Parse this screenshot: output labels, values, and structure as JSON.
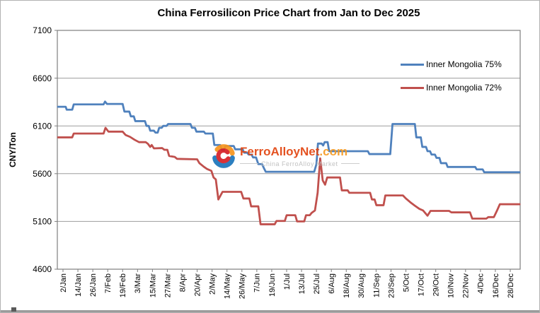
{
  "page": {
    "title": "China Ferrosilicon Price Chart from Jan to Dec 2025"
  },
  "watermark": {
    "brand": "FerroAlloyNet",
    "brand_suffix": ".com",
    "tagline": "China FerroAlloy Market",
    "brand_color": "#e2440f",
    "suffix_color": "#f59a22",
    "tagline_color": "#bcbcbc"
  },
  "chart_data": {
    "type": "line",
    "title": "China Ferrosilicon Price Chart from Jan to Dec 2025",
    "xlabel": "",
    "ylabel": "CNY/Ton",
    "ylim": [
      4600,
      7100
    ],
    "y_ticks": [
      4600,
      5100,
      5600,
      6100,
      6600,
      7100
    ],
    "grid": "horizontal",
    "legend_position": "top-right",
    "x_tick_labels": [
      "2/Jan",
      "14/Jan",
      "26/Jan",
      "7/Feb",
      "19/Feb",
      "3/Mar",
      "15/Mar",
      "27/Mar",
      "8/Apr",
      "20/Apr",
      "2/May",
      "14/May",
      "26/May",
      "7/Jun",
      "19/Jun",
      "1/Jul",
      "13/Jul",
      "25/Jul",
      "6/Aug",
      "18/Aug",
      "30/Aug",
      "11/Sep",
      "23/Sep",
      "5/Oct",
      "17/Oct",
      "29/Oct",
      "10/Nov",
      "22/Nov",
      "4/Dec",
      "16/Dec",
      "28/Dec"
    ],
    "axis_color": "#7f7f7f",
    "gridline_color": "#9d9d9d",
    "series": [
      {
        "name": "Inner Mongolia 75%",
        "color": "#4F81BD",
        "points": [
          [
            0,
            6300
          ],
          [
            0.18,
            6300
          ],
          [
            0.25,
            6270
          ],
          [
            0.62,
            6270
          ],
          [
            0.72,
            6325
          ],
          [
            2.72,
            6325
          ],
          [
            2.82,
            6355
          ],
          [
            2.95,
            6330
          ],
          [
            4.0,
            6330
          ],
          [
            4.12,
            6250
          ],
          [
            4.45,
            6250
          ],
          [
            4.55,
            6200
          ],
          [
            4.75,
            6200
          ],
          [
            4.85,
            6150
          ],
          [
            5.5,
            6150
          ],
          [
            5.6,
            6100
          ],
          [
            5.75,
            6100
          ],
          [
            5.85,
            6050
          ],
          [
            6.1,
            6050
          ],
          [
            6.2,
            6030
          ],
          [
            6.35,
            6030
          ],
          [
            6.45,
            6080
          ],
          [
            6.62,
            6080
          ],
          [
            6.72,
            6100
          ],
          [
            6.95,
            6100
          ],
          [
            7.05,
            6120
          ],
          [
            8.55,
            6120
          ],
          [
            8.65,
            6080
          ],
          [
            8.85,
            6080
          ],
          [
            8.95,
            6040
          ],
          [
            9.45,
            6040
          ],
          [
            9.55,
            6020
          ],
          [
            10.05,
            6020
          ],
          [
            10.15,
            5900
          ],
          [
            10.55,
            5900
          ],
          [
            10.65,
            5850
          ],
          [
            10.8,
            5850
          ],
          [
            10.9,
            5890
          ],
          [
            11.45,
            5890
          ],
          [
            11.55,
            5855
          ],
          [
            12.05,
            5855
          ],
          [
            12.15,
            5820
          ],
          [
            12.35,
            5820
          ],
          [
            12.45,
            5800
          ],
          [
            12.65,
            5800
          ],
          [
            12.75,
            5770
          ],
          [
            12.95,
            5770
          ],
          [
            13.1,
            5700
          ],
          [
            13.35,
            5700
          ],
          [
            13.5,
            5650
          ],
          [
            13.6,
            5620
          ],
          [
            16.85,
            5620
          ],
          [
            17.0,
            5700
          ],
          [
            17.1,
            5915
          ],
          [
            17.35,
            5915
          ],
          [
            17.45,
            5895
          ],
          [
            17.55,
            5930
          ],
          [
            17.75,
            5930
          ],
          [
            17.85,
            5835
          ],
          [
            20.45,
            5835
          ],
          [
            20.55,
            5805
          ],
          [
            21.95,
            5805
          ],
          [
            22.1,
            6120
          ],
          [
            23.6,
            6120
          ],
          [
            23.7,
            5980
          ],
          [
            24.0,
            5980
          ],
          [
            24.1,
            5880
          ],
          [
            24.35,
            5880
          ],
          [
            24.45,
            5835
          ],
          [
            24.62,
            5835
          ],
          [
            24.72,
            5800
          ],
          [
            24.95,
            5800
          ],
          [
            25.05,
            5765
          ],
          [
            25.25,
            5765
          ],
          [
            25.35,
            5710
          ],
          [
            25.7,
            5710
          ],
          [
            25.8,
            5670
          ],
          [
            27.65,
            5670
          ],
          [
            27.75,
            5645
          ],
          [
            28.15,
            5645
          ],
          [
            28.25,
            5615
          ],
          [
            30,
            5615
          ]
        ]
      },
      {
        "name": "Inner Mongolia 72%",
        "color": "#C0504D",
        "points": [
          [
            0,
            5980
          ],
          [
            0.62,
            5980
          ],
          [
            0.72,
            6020
          ],
          [
            2.72,
            6020
          ],
          [
            2.85,
            6080
          ],
          [
            3.05,
            6040
          ],
          [
            4.0,
            6040
          ],
          [
            4.2,
            6005
          ],
          [
            4.5,
            5985
          ],
          [
            4.8,
            5955
          ],
          [
            5.1,
            5930
          ],
          [
            5.55,
            5930
          ],
          [
            5.7,
            5912
          ],
          [
            5.85,
            5880
          ],
          [
            5.95,
            5900
          ],
          [
            6.1,
            5865
          ],
          [
            6.65,
            5868
          ],
          [
            6.8,
            5850
          ],
          [
            7.0,
            5850
          ],
          [
            7.12,
            5785
          ],
          [
            7.5,
            5775
          ],
          [
            7.65,
            5755
          ],
          [
            9.0,
            5750
          ],
          [
            9.15,
            5710
          ],
          [
            9.45,
            5672
          ],
          [
            9.65,
            5650
          ],
          [
            9.95,
            5630
          ],
          [
            10.1,
            5560
          ],
          [
            10.25,
            5540
          ],
          [
            10.42,
            5330
          ],
          [
            10.7,
            5410
          ],
          [
            11.95,
            5410
          ],
          [
            12.1,
            5340
          ],
          [
            12.5,
            5340
          ],
          [
            12.62,
            5258
          ],
          [
            13.1,
            5258
          ],
          [
            13.25,
            5070
          ],
          [
            14.2,
            5070
          ],
          [
            14.32,
            5105
          ],
          [
            14.88,
            5105
          ],
          [
            15.0,
            5165
          ],
          [
            15.58,
            5165
          ],
          [
            15.7,
            5100
          ],
          [
            16.18,
            5100
          ],
          [
            16.3,
            5165
          ],
          [
            16.55,
            5165
          ],
          [
            16.68,
            5190
          ],
          [
            16.9,
            5215
          ],
          [
            17.08,
            5400
          ],
          [
            17.25,
            5760
          ],
          [
            17.42,
            5530
          ],
          [
            17.58,
            5485
          ],
          [
            17.72,
            5560
          ],
          [
            18.58,
            5560
          ],
          [
            18.7,
            5425
          ],
          [
            19.1,
            5425
          ],
          [
            19.2,
            5400
          ],
          [
            20.6,
            5400
          ],
          [
            20.72,
            5330
          ],
          [
            20.9,
            5330
          ],
          [
            21.02,
            5270
          ],
          [
            21.5,
            5270
          ],
          [
            21.62,
            5372
          ],
          [
            22.8,
            5372
          ],
          [
            23.0,
            5340
          ],
          [
            23.3,
            5300
          ],
          [
            23.6,
            5265
          ],
          [
            23.9,
            5232
          ],
          [
            24.15,
            5215
          ],
          [
            24.45,
            5160
          ],
          [
            24.65,
            5210
          ],
          [
            25.9,
            5210
          ],
          [
            26.05,
            5195
          ],
          [
            27.3,
            5195
          ],
          [
            27.45,
            5130
          ],
          [
            28.4,
            5130
          ],
          [
            28.52,
            5145
          ],
          [
            28.9,
            5145
          ],
          [
            29.1,
            5210
          ],
          [
            29.3,
            5280
          ],
          [
            30,
            5280
          ]
        ]
      }
    ]
  }
}
